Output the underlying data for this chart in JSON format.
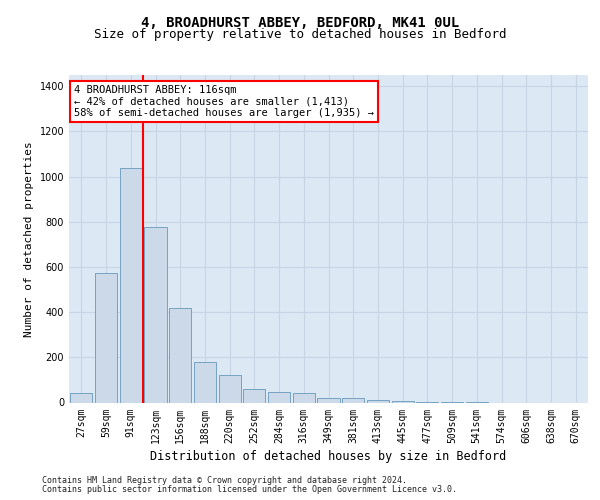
{
  "title_line1": "4, BROADHURST ABBEY, BEDFORD, MK41 0UL",
  "title_line2": "Size of property relative to detached houses in Bedford",
  "xlabel": "Distribution of detached houses by size in Bedford",
  "ylabel": "Number of detached properties",
  "categories": [
    "27sqm",
    "59sqm",
    "91sqm",
    "123sqm",
    "156sqm",
    "188sqm",
    "220sqm",
    "252sqm",
    "284sqm",
    "316sqm",
    "349sqm",
    "381sqm",
    "413sqm",
    "445sqm",
    "477sqm",
    "509sqm",
    "541sqm",
    "574sqm",
    "606sqm",
    "638sqm",
    "670sqm"
  ],
  "values": [
    42,
    575,
    1040,
    775,
    420,
    180,
    120,
    60,
    45,
    42,
    22,
    20,
    12,
    8,
    3,
    2,
    1,
    0,
    0,
    0,
    0
  ],
  "bar_color": "#ccd9e8",
  "bar_edge_color": "#6699bb",
  "red_line_color": "red",
  "annotation_text": "4 BROADHURST ABBEY: 116sqm\n← 42% of detached houses are smaller (1,413)\n58% of semi-detached houses are larger (1,935) →",
  "annotation_box_color": "white",
  "annotation_box_edgecolor": "red",
  "ylim": [
    0,
    1450
  ],
  "yticks": [
    0,
    200,
    400,
    600,
    800,
    1000,
    1200,
    1400
  ],
  "grid_color": "#c8d4e4",
  "plot_bg_color": "#dce8f4",
  "footer_line1": "Contains HM Land Registry data © Crown copyright and database right 2024.",
  "footer_line2": "Contains public sector information licensed under the Open Government Licence v3.0.",
  "title_fontsize": 10,
  "subtitle_fontsize": 9,
  "tick_fontsize": 7,
  "ylabel_fontsize": 8,
  "xlabel_fontsize": 8.5,
  "footer_fontsize": 6,
  "annot_fontsize": 7.5
}
